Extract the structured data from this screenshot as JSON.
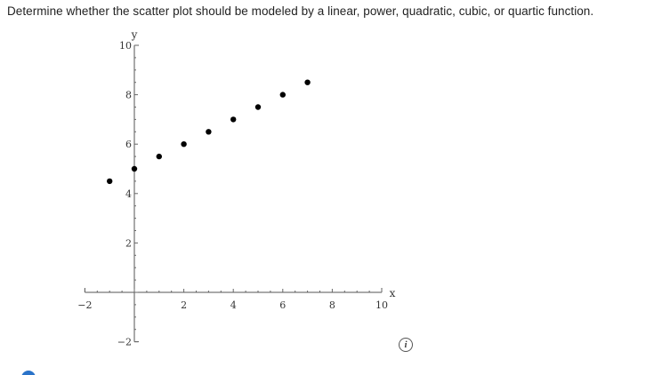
{
  "question": {
    "text": "Determine whether the scatter plot should be modeled by a linear, power, quadratic, cubic, or quartic function."
  },
  "info_icon": {
    "icon": "info-icon",
    "glyph": "i"
  },
  "chart_data": {
    "type": "scatter",
    "xlabel": "x",
    "ylabel": "y",
    "xlim": [
      -2,
      10
    ],
    "ylim": [
      -2,
      10
    ],
    "x_ticks": [
      -2,
      2,
      4,
      6,
      8,
      10
    ],
    "y_ticks": [
      -2,
      2,
      4,
      6,
      8,
      10
    ],
    "x_tick_labels": [
      "−2",
      "2",
      "4",
      "6",
      "8",
      "10"
    ],
    "y_tick_labels": [
      "−2",
      "2",
      "4",
      "6",
      "8",
      "10"
    ],
    "minor_tick_step": 0.5,
    "grid": false,
    "point_color": "#000000",
    "points": [
      {
        "x": -1,
        "y": 4.5
      },
      {
        "x": 0,
        "y": 5
      },
      {
        "x": 1,
        "y": 5.5
      },
      {
        "x": 2,
        "y": 6
      },
      {
        "x": 3,
        "y": 6.5
      },
      {
        "x": 4,
        "y": 7
      },
      {
        "x": 5,
        "y": 7.5
      },
      {
        "x": 6,
        "y": 8
      },
      {
        "x": 7,
        "y": 8.5
      }
    ]
  }
}
